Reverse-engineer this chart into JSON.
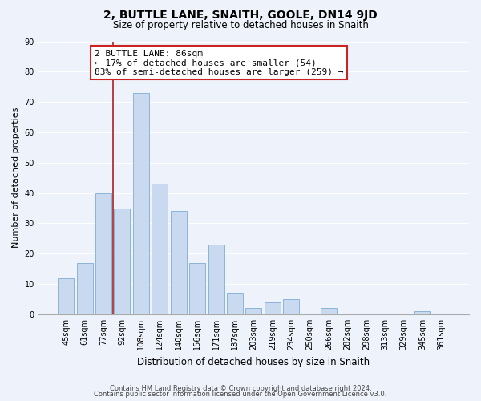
{
  "title": "2, BUTTLE LANE, SNAITH, GOOLE, DN14 9JD",
  "subtitle": "Size of property relative to detached houses in Snaith",
  "xlabel": "Distribution of detached houses by size in Snaith",
  "ylabel": "Number of detached properties",
  "bar_labels": [
    "45sqm",
    "61sqm",
    "77sqm",
    "92sqm",
    "108sqm",
    "124sqm",
    "140sqm",
    "156sqm",
    "171sqm",
    "187sqm",
    "203sqm",
    "219sqm",
    "234sqm",
    "250sqm",
    "266sqm",
    "282sqm",
    "298sqm",
    "313sqm",
    "329sqm",
    "345sqm",
    "361sqm"
  ],
  "bar_values": [
    12,
    17,
    40,
    35,
    73,
    43,
    34,
    17,
    23,
    7,
    2,
    4,
    5,
    0,
    2,
    0,
    0,
    0,
    0,
    1,
    0
  ],
  "bar_color": "#c8d9f0",
  "bar_edge_color": "#8ab4d8",
  "vline_color": "#aa2222",
  "annotation_title": "2 BUTTLE LANE: 86sqm",
  "annotation_line1": "← 17% of detached houses are smaller (54)",
  "annotation_line2": "83% of semi-detached houses are larger (259) →",
  "annotation_box_facecolor": "#ffffff",
  "annotation_box_edgecolor": "#cc2222",
  "ylim": [
    0,
    90
  ],
  "yticks": [
    0,
    10,
    20,
    30,
    40,
    50,
    60,
    70,
    80,
    90
  ],
  "footer_line1": "Contains HM Land Registry data © Crown copyright and database right 2024.",
  "footer_line2": "Contains public sector information licensed under the Open Government Licence v3.0.",
  "background_color": "#eef2fa",
  "grid_color": "#ffffff",
  "title_fontsize": 10,
  "subtitle_fontsize": 8.5,
  "xlabel_fontsize": 8.5,
  "ylabel_fontsize": 8,
  "tick_fontsize": 7,
  "footer_fontsize": 6,
  "annotation_fontsize": 8
}
